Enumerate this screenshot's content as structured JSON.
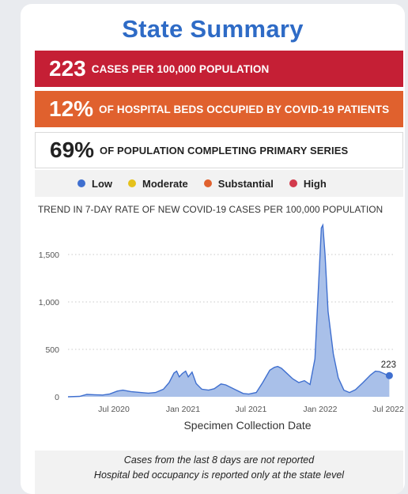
{
  "title": "State Summary",
  "cases": {
    "value": "223",
    "label": "CASES PER 100,000 POPULATION",
    "color": "#c51f35"
  },
  "beds": {
    "value": "12%",
    "label": "OF HOSPITAL BEDS OCCUPIED BY COVID-19 PATIENTS",
    "color": "#e0612e"
  },
  "vaccination": {
    "value": "69%",
    "label": "OF POPULATION COMPLETING PRIMARY SERIES"
  },
  "legend": [
    {
      "label": "Low",
      "color": "#3f6fcf"
    },
    {
      "label": "Moderate",
      "color": "#e5c11b"
    },
    {
      "label": "Substantial",
      "color": "#e0612e"
    },
    {
      "label": "High",
      "color": "#d23a4c"
    }
  ],
  "chart_data": {
    "type": "area",
    "title": "TREND IN 7-DAY RATE OF NEW COVID-19 CASES PER 100,000 POPULATION",
    "xlabel": "Specimen Collection Date",
    "ylabel": "",
    "ylim": [
      0,
      1850
    ],
    "yticks": [
      0,
      500,
      1000,
      1500
    ],
    "ytick_labels": [
      "0",
      "500",
      "1,000",
      "1,500"
    ],
    "xticks": [
      "2020-07-01",
      "2021-01-01",
      "2021-07-01",
      "2022-01-01",
      "2022-07-01"
    ],
    "xtick_labels": [
      "Jul 2020",
      "Jan 2021",
      "Jul 2021",
      "Jan 2022",
      "Jul 2022"
    ],
    "grid": true,
    "series": [
      {
        "fill": "#a9c0e9",
        "line": "#3f6fcf",
        "points": [
          [
            "2020-03-01",
            0
          ],
          [
            "2020-04-01",
            4
          ],
          [
            "2020-04-20",
            25
          ],
          [
            "2020-05-10",
            22
          ],
          [
            "2020-06-01",
            18
          ],
          [
            "2020-06-20",
            30
          ],
          [
            "2020-07-10",
            60
          ],
          [
            "2020-07-25",
            70
          ],
          [
            "2020-08-15",
            55
          ],
          [
            "2020-09-10",
            45
          ],
          [
            "2020-10-01",
            38
          ],
          [
            "2020-10-20",
            45
          ],
          [
            "2020-11-10",
            80
          ],
          [
            "2020-11-25",
            150
          ],
          [
            "2020-12-08",
            250
          ],
          [
            "2020-12-15",
            270
          ],
          [
            "2020-12-22",
            210
          ],
          [
            "2020-12-30",
            245
          ],
          [
            "2021-01-08",
            270
          ],
          [
            "2021-01-15",
            210
          ],
          [
            "2021-01-25",
            260
          ],
          [
            "2021-02-05",
            140
          ],
          [
            "2021-02-20",
            80
          ],
          [
            "2021-03-10",
            70
          ],
          [
            "2021-03-25",
            85
          ],
          [
            "2021-04-12",
            135
          ],
          [
            "2021-04-25",
            125
          ],
          [
            "2021-05-15",
            85
          ],
          [
            "2021-06-10",
            35
          ],
          [
            "2021-06-25",
            28
          ],
          [
            "2021-07-15",
            45
          ],
          [
            "2021-08-01",
            150
          ],
          [
            "2021-08-20",
            280
          ],
          [
            "2021-09-01",
            310
          ],
          [
            "2021-09-10",
            320
          ],
          [
            "2021-09-20",
            300
          ],
          [
            "2021-10-01",
            260
          ],
          [
            "2021-10-20",
            190
          ],
          [
            "2021-11-05",
            150
          ],
          [
            "2021-11-20",
            170
          ],
          [
            "2021-12-05",
            130
          ],
          [
            "2021-12-18",
            400
          ],
          [
            "2021-12-28",
            1200
          ],
          [
            "2022-01-04",
            1780
          ],
          [
            "2022-01-08",
            1810
          ],
          [
            "2022-01-14",
            1500
          ],
          [
            "2022-01-22",
            900
          ],
          [
            "2022-02-05",
            450
          ],
          [
            "2022-02-18",
            200
          ],
          [
            "2022-03-05",
            70
          ],
          [
            "2022-03-20",
            45
          ],
          [
            "2022-04-05",
            75
          ],
          [
            "2022-04-25",
            150
          ],
          [
            "2022-05-15",
            230
          ],
          [
            "2022-05-28",
            270
          ],
          [
            "2022-06-08",
            265
          ],
          [
            "2022-06-20",
            245
          ],
          [
            "2022-06-28",
            230
          ],
          [
            "2022-07-04",
            223
          ]
        ]
      }
    ],
    "annotations": [
      {
        "x": "2022-07-04",
        "y": 223,
        "text": "223"
      }
    ]
  },
  "footnotes": [
    "Cases from the last 8 days are not reported",
    "Hospital bed occupancy is reported only at the state level"
  ]
}
